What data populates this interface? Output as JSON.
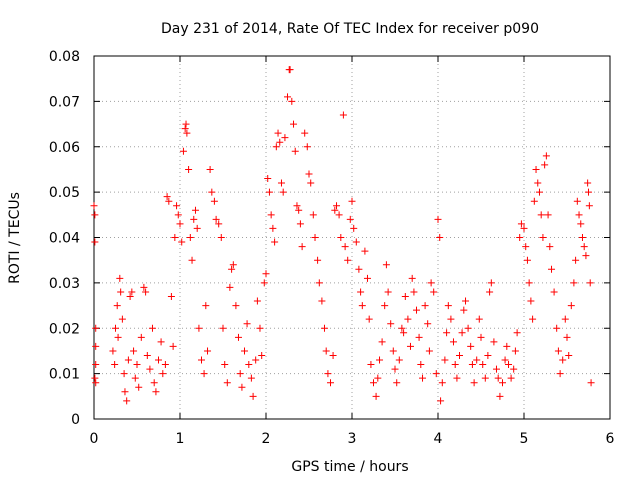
{
  "chart_data": {
    "type": "scatter",
    "title": "Day 231 of 2014, Rate Of TEC Index for receiver p090",
    "xlabel": "GPS time / hours",
    "ylabel": "ROTI / TECUs",
    "xlim": [
      0,
      6
    ],
    "ylim": [
      0,
      0.08
    ],
    "x_ticks": [
      "0",
      "1",
      "2",
      "3",
      "4",
      "5",
      "6"
    ],
    "y_ticks": [
      "0",
      "0.01",
      "0.02",
      "0.03",
      "0.04",
      "0.05",
      "0.06",
      "0.07",
      "0.08"
    ],
    "x_tick_values": [
      0,
      1,
      2,
      3,
      4,
      5,
      6
    ],
    "y_tick_values": [
      0,
      0.01,
      0.02,
      0.03,
      0.04,
      0.05,
      0.06,
      0.07,
      0.08
    ],
    "grid": true,
    "marker": "+",
    "series": [
      {
        "name": "p090",
        "color": "#ff0000",
        "points": [
          [
            0.0,
            0.047
          ],
          [
            0.01,
            0.045
          ],
          [
            0.01,
            0.039
          ],
          [
            0.02,
            0.02
          ],
          [
            0.02,
            0.016
          ],
          [
            0.02,
            0.012
          ],
          [
            0.01,
            0.009
          ],
          [
            0.02,
            0.008
          ],
          [
            0.22,
            0.015
          ],
          [
            0.24,
            0.012
          ],
          [
            0.25,
            0.02
          ],
          [
            0.27,
            0.025
          ],
          [
            0.28,
            0.018
          ],
          [
            0.3,
            0.031
          ],
          [
            0.31,
            0.028
          ],
          [
            0.33,
            0.022
          ],
          [
            0.35,
            0.01
          ],
          [
            0.36,
            0.006
          ],
          [
            0.38,
            0.004
          ],
          [
            0.4,
            0.013
          ],
          [
            0.42,
            0.027
          ],
          [
            0.44,
            0.028
          ],
          [
            0.46,
            0.015
          ],
          [
            0.48,
            0.009
          ],
          [
            0.5,
            0.012
          ],
          [
            0.52,
            0.007
          ],
          [
            0.55,
            0.018
          ],
          [
            0.58,
            0.029
          ],
          [
            0.6,
            0.028
          ],
          [
            0.62,
            0.014
          ],
          [
            0.65,
            0.011
          ],
          [
            0.68,
            0.02
          ],
          [
            0.7,
            0.008
          ],
          [
            0.72,
            0.006
          ],
          [
            0.75,
            0.013
          ],
          [
            0.78,
            0.017
          ],
          [
            0.8,
            0.01
          ],
          [
            0.83,
            0.012
          ],
          [
            0.85,
            0.049
          ],
          [
            0.87,
            0.048
          ],
          [
            0.9,
            0.027
          ],
          [
            0.92,
            0.016
          ],
          [
            0.94,
            0.04
          ],
          [
            0.96,
            0.047
          ],
          [
            0.98,
            0.045
          ],
          [
            1.0,
            0.043
          ],
          [
            1.02,
            0.039
          ],
          [
            1.04,
            0.059
          ],
          [
            1.06,
            0.064
          ],
          [
            1.07,
            0.065
          ],
          [
            1.08,
            0.063
          ],
          [
            1.1,
            0.055
          ],
          [
            1.12,
            0.04
          ],
          [
            1.14,
            0.035
          ],
          [
            1.16,
            0.044
          ],
          [
            1.18,
            0.046
          ],
          [
            1.2,
            0.042
          ],
          [
            1.22,
            0.02
          ],
          [
            1.25,
            0.013
          ],
          [
            1.28,
            0.01
          ],
          [
            1.3,
            0.025
          ],
          [
            1.32,
            0.015
          ],
          [
            1.35,
            0.055
          ],
          [
            1.37,
            0.05
          ],
          [
            1.4,
            0.048
          ],
          [
            1.42,
            0.044
          ],
          [
            1.45,
            0.043
          ],
          [
            1.48,
            0.04
          ],
          [
            1.5,
            0.02
          ],
          [
            1.52,
            0.012
          ],
          [
            1.55,
            0.008
          ],
          [
            1.58,
            0.029
          ],
          [
            1.6,
            0.033
          ],
          [
            1.62,
            0.034
          ],
          [
            1.65,
            0.025
          ],
          [
            1.68,
            0.018
          ],
          [
            1.7,
            0.01
          ],
          [
            1.72,
            0.007
          ],
          [
            1.75,
            0.015
          ],
          [
            1.78,
            0.021
          ],
          [
            1.8,
            0.012
          ],
          [
            1.83,
            0.009
          ],
          [
            1.85,
            0.005
          ],
          [
            1.88,
            0.013
          ],
          [
            1.9,
            0.026
          ],
          [
            1.93,
            0.02
          ],
          [
            1.95,
            0.014
          ],
          [
            1.98,
            0.03
          ],
          [
            2.0,
            0.032
          ],
          [
            2.02,
            0.053
          ],
          [
            2.04,
            0.05
          ],
          [
            2.06,
            0.045
          ],
          [
            2.08,
            0.042
          ],
          [
            2.1,
            0.039
          ],
          [
            2.12,
            0.06
          ],
          [
            2.14,
            0.063
          ],
          [
            2.16,
            0.061
          ],
          [
            2.18,
            0.052
          ],
          [
            2.2,
            0.05
          ],
          [
            2.22,
            0.062
          ],
          [
            2.25,
            0.071
          ],
          [
            2.27,
            0.077
          ],
          [
            2.28,
            0.077
          ],
          [
            2.3,
            0.07
          ],
          [
            2.32,
            0.065
          ],
          [
            2.34,
            0.059
          ],
          [
            2.36,
            0.047
          ],
          [
            2.38,
            0.046
          ],
          [
            2.4,
            0.043
          ],
          [
            2.42,
            0.038
          ],
          [
            2.45,
            0.063
          ],
          [
            2.48,
            0.06
          ],
          [
            2.5,
            0.054
          ],
          [
            2.52,
            0.052
          ],
          [
            2.55,
            0.045
          ],
          [
            2.57,
            0.04
          ],
          [
            2.6,
            0.035
          ],
          [
            2.62,
            0.03
          ],
          [
            2.65,
            0.026
          ],
          [
            2.68,
            0.02
          ],
          [
            2.7,
            0.015
          ],
          [
            2.72,
            0.01
          ],
          [
            2.75,
            0.008
          ],
          [
            2.78,
            0.014
          ],
          [
            2.8,
            0.046
          ],
          [
            2.82,
            0.047
          ],
          [
            2.85,
            0.045
          ],
          [
            2.87,
            0.04
          ],
          [
            2.9,
            0.067
          ],
          [
            2.92,
            0.038
          ],
          [
            2.95,
            0.035
          ],
          [
            2.98,
            0.044
          ],
          [
            3.0,
            0.048
          ],
          [
            3.02,
            0.042
          ],
          [
            3.05,
            0.039
          ],
          [
            3.08,
            0.033
          ],
          [
            3.1,
            0.028
          ],
          [
            3.12,
            0.025
          ],
          [
            3.15,
            0.037
          ],
          [
            3.18,
            0.031
          ],
          [
            3.2,
            0.022
          ],
          [
            3.22,
            0.012
          ],
          [
            3.25,
            0.008
          ],
          [
            3.28,
            0.005
          ],
          [
            3.3,
            0.009
          ],
          [
            3.32,
            0.013
          ],
          [
            3.35,
            0.017
          ],
          [
            3.38,
            0.025
          ],
          [
            3.4,
            0.034
          ],
          [
            3.42,
            0.028
          ],
          [
            3.45,
            0.021
          ],
          [
            3.48,
            0.015
          ],
          [
            3.5,
            0.011
          ],
          [
            3.52,
            0.008
          ],
          [
            3.55,
            0.013
          ],
          [
            3.58,
            0.02
          ],
          [
            3.6,
            0.019
          ],
          [
            3.62,
            0.027
          ],
          [
            3.65,
            0.022
          ],
          [
            3.68,
            0.016
          ],
          [
            3.7,
            0.031
          ],
          [
            3.72,
            0.028
          ],
          [
            3.75,
            0.024
          ],
          [
            3.78,
            0.018
          ],
          [
            3.8,
            0.012
          ],
          [
            3.82,
            0.009
          ],
          [
            3.85,
            0.025
          ],
          [
            3.88,
            0.021
          ],
          [
            3.9,
            0.015
          ],
          [
            3.92,
            0.03
          ],
          [
            3.95,
            0.028
          ],
          [
            3.98,
            0.01
          ],
          [
            4.0,
            0.044
          ],
          [
            4.02,
            0.04
          ],
          [
            4.03,
            0.004
          ],
          [
            4.05,
            0.008
          ],
          [
            4.08,
            0.013
          ],
          [
            4.1,
            0.019
          ],
          [
            4.12,
            0.025
          ],
          [
            4.15,
            0.022
          ],
          [
            4.18,
            0.017
          ],
          [
            4.2,
            0.012
          ],
          [
            4.22,
            0.009
          ],
          [
            4.25,
            0.014
          ],
          [
            4.28,
            0.019
          ],
          [
            4.3,
            0.024
          ],
          [
            4.32,
            0.026
          ],
          [
            4.35,
            0.02
          ],
          [
            4.38,
            0.016
          ],
          [
            4.4,
            0.012
          ],
          [
            4.42,
            0.008
          ],
          [
            4.45,
            0.013
          ],
          [
            4.48,
            0.022
          ],
          [
            4.5,
            0.018
          ],
          [
            4.52,
            0.012
          ],
          [
            4.55,
            0.009
          ],
          [
            4.58,
            0.014
          ],
          [
            4.6,
            0.028
          ],
          [
            4.62,
            0.03
          ],
          [
            4.65,
            0.017
          ],
          [
            4.68,
            0.011
          ],
          [
            4.7,
            0.009
          ],
          [
            4.72,
            0.005
          ],
          [
            4.75,
            0.008
          ],
          [
            4.78,
            0.013
          ],
          [
            4.8,
            0.016
          ],
          [
            4.82,
            0.012
          ],
          [
            4.85,
            0.009
          ],
          [
            4.88,
            0.011
          ],
          [
            4.9,
            0.015
          ],
          [
            4.92,
            0.019
          ],
          [
            4.95,
            0.04
          ],
          [
            4.97,
            0.043
          ],
          [
            5.0,
            0.042
          ],
          [
            5.02,
            0.038
          ],
          [
            5.04,
            0.035
          ],
          [
            5.06,
            0.03
          ],
          [
            5.08,
            0.026
          ],
          [
            5.1,
            0.022
          ],
          [
            5.12,
            0.048
          ],
          [
            5.14,
            0.055
          ],
          [
            5.16,
            0.052
          ],
          [
            5.18,
            0.05
          ],
          [
            5.2,
            0.045
          ],
          [
            5.22,
            0.04
          ],
          [
            5.24,
            0.056
          ],
          [
            5.26,
            0.058
          ],
          [
            5.28,
            0.045
          ],
          [
            5.3,
            0.038
          ],
          [
            5.32,
            0.033
          ],
          [
            5.35,
            0.028
          ],
          [
            5.38,
            0.02
          ],
          [
            5.4,
            0.015
          ],
          [
            5.42,
            0.01
          ],
          [
            5.45,
            0.013
          ],
          [
            5.48,
            0.022
          ],
          [
            5.5,
            0.018
          ],
          [
            5.52,
            0.014
          ],
          [
            5.55,
            0.025
          ],
          [
            5.58,
            0.03
          ],
          [
            5.6,
            0.035
          ],
          [
            5.62,
            0.048
          ],
          [
            5.64,
            0.045
          ],
          [
            5.66,
            0.043
          ],
          [
            5.68,
            0.04
          ],
          [
            5.7,
            0.038
          ],
          [
            5.72,
            0.036
          ],
          [
            5.74,
            0.052
          ],
          [
            5.75,
            0.05
          ],
          [
            5.76,
            0.047
          ],
          [
            5.77,
            0.03
          ],
          [
            5.78,
            0.008
          ]
        ]
      }
    ]
  }
}
